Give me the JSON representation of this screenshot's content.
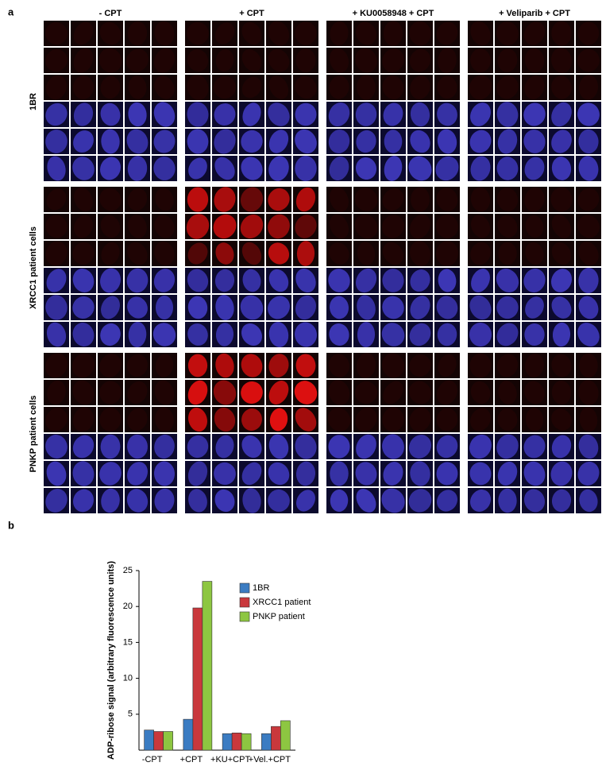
{
  "panel_a": {
    "label": "a",
    "column_headers": [
      "- CPT",
      "+ CPT",
      "+ KU0058948 + CPT",
      "+ Veliparib + CPT"
    ],
    "row_labels": [
      "1BR",
      "XRCC1 patient cells",
      "PNKP patient cells"
    ]
  },
  "panel_b": {
    "label": "b"
  },
  "chart_data": {
    "type": "bar",
    "ylabel": "ADP-ribose signal (arbitrary fluorescence units)",
    "categories": [
      "-CPT",
      "+CPT",
      "+KU+CPT",
      "+Vel.+CPT"
    ],
    "series": [
      {
        "name": "1BR",
        "color": "#3b7cc2",
        "values": [
          2.8,
          4.3,
          2.3,
          2.3
        ]
      },
      {
        "name": "XRCC1 patient",
        "color": "#c9383c",
        "values": [
          2.6,
          19.8,
          2.4,
          3.3
        ]
      },
      {
        "name": "PNKP patient",
        "color": "#8dc641",
        "values": [
          2.6,
          23.5,
          2.3,
          4.1
        ]
      }
    ],
    "ylim": [
      0,
      25
    ],
    "yticks": [
      5,
      10,
      15,
      20,
      25
    ],
    "legend": "top-right"
  }
}
